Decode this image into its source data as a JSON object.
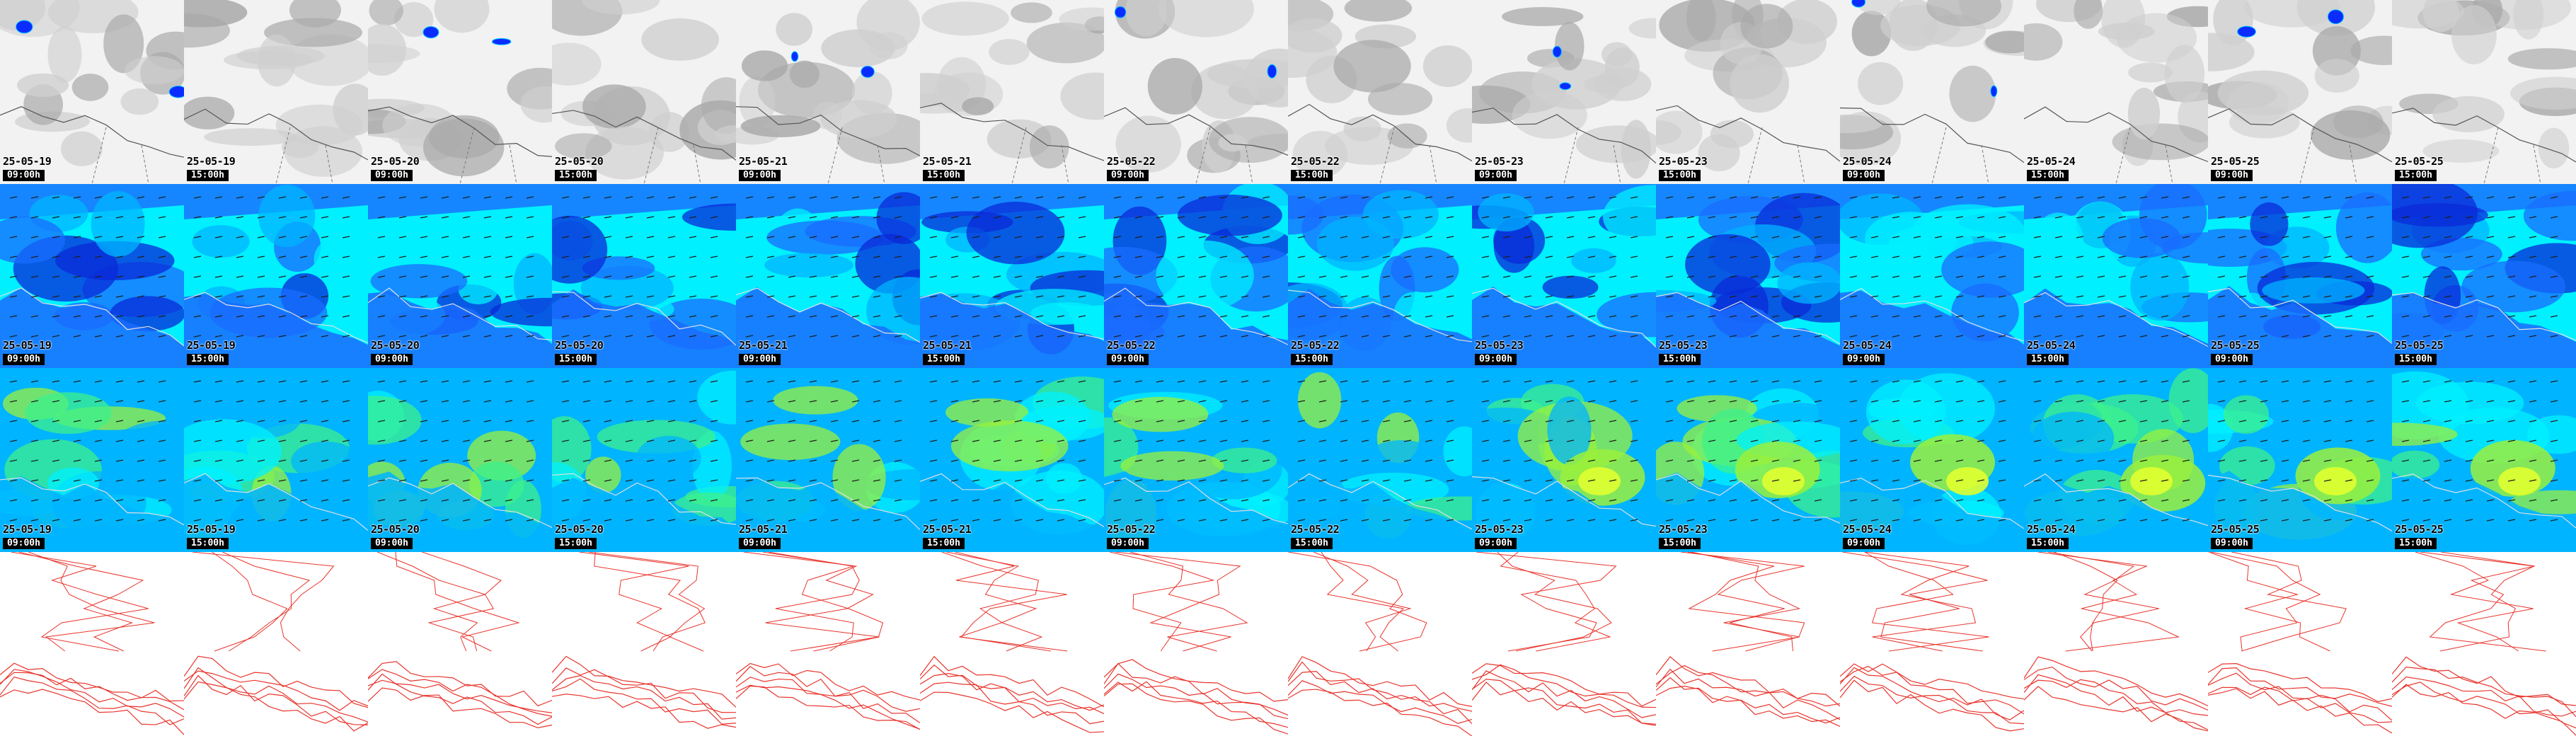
{
  "rows": [
    {
      "name": "cloud-precip-row",
      "style": "cloud"
    },
    {
      "name": "wind-low-row",
      "style": "windlow"
    },
    {
      "name": "wind-high-row",
      "style": "windhigh"
    },
    {
      "name": "pressure-contour-row",
      "style": "contour"
    }
  ],
  "columns": [
    {
      "date": "25-05-19",
      "time": "09:00h"
    },
    {
      "date": "25-05-19",
      "time": "15:00h"
    },
    {
      "date": "25-05-20",
      "time": "09:00h"
    },
    {
      "date": "25-05-20",
      "time": "15:00h"
    },
    {
      "date": "25-05-21",
      "time": "09:00h"
    },
    {
      "date": "25-05-21",
      "time": "15:00h"
    },
    {
      "date": "25-05-22",
      "time": "09:00h"
    },
    {
      "date": "25-05-22",
      "time": "15:00h"
    },
    {
      "date": "25-05-23",
      "time": "09:00h"
    },
    {
      "date": "25-05-23",
      "time": "15:00h"
    },
    {
      "date": "25-05-24",
      "time": "09:00h"
    },
    {
      "date": "25-05-24",
      "time": "15:00h"
    },
    {
      "date": "25-05-25",
      "time": "09:00h"
    },
    {
      "date": "25-05-25",
      "time": "15:00h"
    }
  ],
  "colors": {
    "cloud_light": "#f2f2f2",
    "cloud_mid": "#cfcfcf",
    "cloud_dark": "#a9a9a9",
    "precip_blue": "#0a2cff",
    "precip_cyan": "#00c8ff",
    "wind_deep": "#0a2ad8",
    "wind_blue": "#1a6cff",
    "wind_sky": "#00b4ff",
    "wind_cyan": "#00f0ff",
    "wind_green": "#3cf08c",
    "wind_lime": "#9af03c",
    "wind_yellow": "#e0ff30",
    "contour": "#e8342c",
    "coast": "#e0e0e0",
    "arrow": "#202020"
  }
}
